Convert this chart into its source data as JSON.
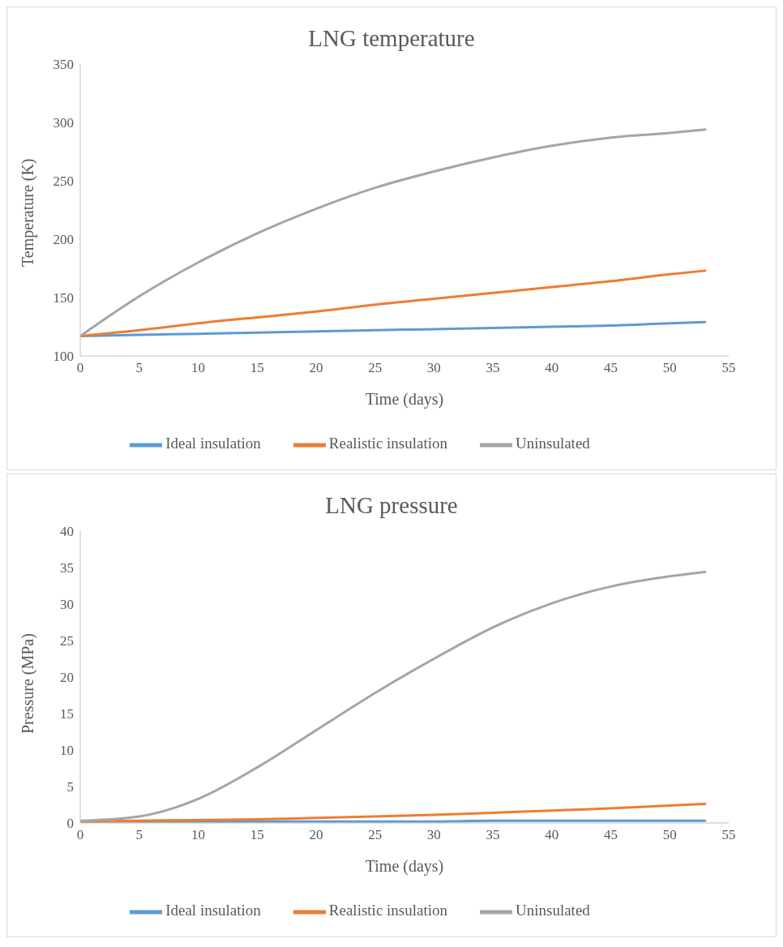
{
  "chart_data": [
    {
      "type": "line",
      "title": "LNG temperature",
      "xlabel": "Time (days)",
      "ylabel": "Temperature (K)",
      "x": [
        0,
        5,
        10,
        15,
        20,
        25,
        30,
        35,
        40,
        45,
        50,
        53
      ],
      "xlim": [
        0,
        55
      ],
      "xticks": [
        0,
        5,
        10,
        15,
        20,
        25,
        30,
        35,
        40,
        45,
        50,
        55
      ],
      "ylim": [
        100,
        350
      ],
      "yticks": [
        100,
        150,
        200,
        250,
        300,
        350
      ],
      "grid": false,
      "legend": "bottom",
      "marker": "none",
      "line_style": "solid",
      "series": [
        {
          "name": "Ideal insulation",
          "color": "#5b9bd5",
          "values": [
            117,
            118,
            119,
            120,
            121,
            122,
            123,
            124,
            125,
            126,
            128,
            129
          ]
        },
        {
          "name": "Realistic insulation",
          "color": "#ed7d31",
          "values": [
            117,
            122,
            128,
            133,
            138,
            144,
            149,
            154,
            159,
            164,
            170,
            173
          ]
        },
        {
          "name": "Uninsulated",
          "color": "#a5a5a5",
          "values": [
            117,
            151,
            180,
            205,
            226,
            244,
            258,
            270,
            280,
            287,
            291,
            294
          ]
        }
      ]
    },
    {
      "type": "line",
      "title": "LNG pressure",
      "xlabel": "Time (days)",
      "ylabel": "Pressure (MPa)",
      "x": [
        0,
        5,
        10,
        15,
        20,
        25,
        30,
        35,
        40,
        45,
        50,
        53
      ],
      "xlim": [
        0,
        55
      ],
      "xticks": [
        0,
        5,
        10,
        15,
        20,
        25,
        30,
        35,
        40,
        45,
        50,
        55
      ],
      "ylim": [
        0,
        40
      ],
      "yticks": [
        0,
        5,
        10,
        15,
        20,
        25,
        30,
        35,
        40
      ],
      "grid": false,
      "legend": "bottom",
      "marker": "none",
      "line_style": "solid",
      "series": [
        {
          "name": "Ideal insulation",
          "color": "#5b9bd5",
          "values": [
            0.2,
            0.2,
            0.2,
            0.2,
            0.2,
            0.2,
            0.2,
            0.3,
            0.3,
            0.3,
            0.3,
            0.3
          ]
        },
        {
          "name": "Realistic insulation",
          "color": "#ed7d31",
          "values": [
            0.2,
            0.3,
            0.4,
            0.5,
            0.7,
            0.9,
            1.1,
            1.4,
            1.7,
            2.0,
            2.4,
            2.6
          ]
        },
        {
          "name": "Uninsulated",
          "color": "#a5a5a5",
          "values": [
            0.3,
            0.9,
            3.3,
            7.6,
            12.7,
            17.8,
            22.5,
            26.8,
            30.1,
            32.4,
            33.8,
            34.4
          ]
        }
      ]
    }
  ]
}
